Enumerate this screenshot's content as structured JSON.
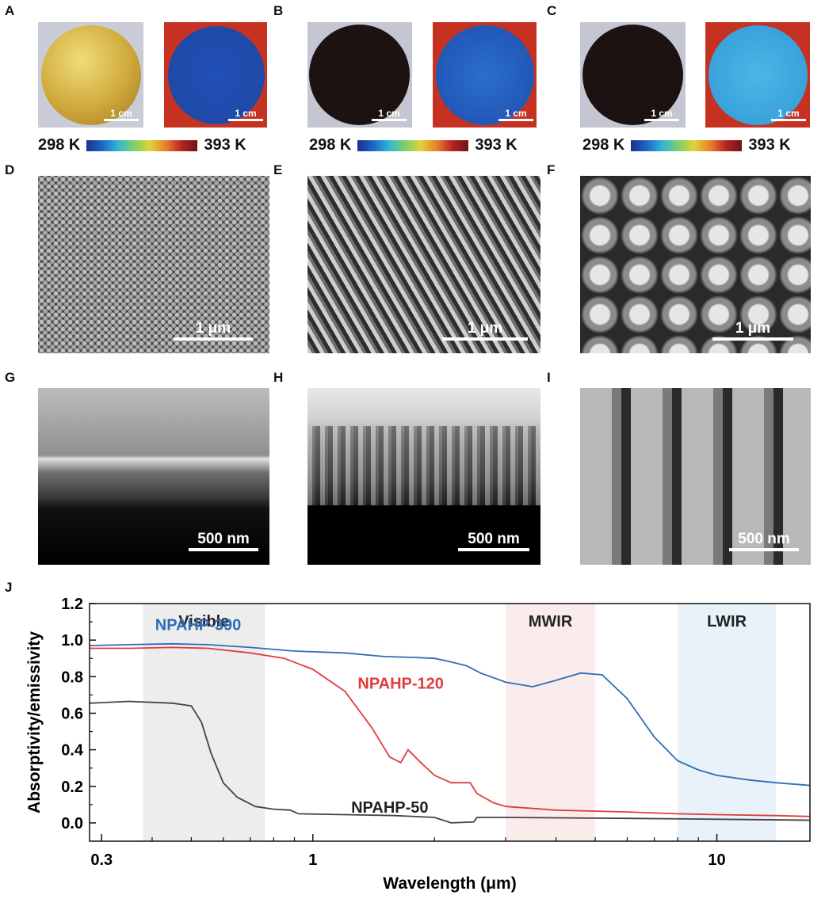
{
  "panels": {
    "A": "A",
    "B": "B",
    "C": "C",
    "D": "D",
    "E": "E",
    "F": "F",
    "G": "G",
    "H": "H",
    "I": "I",
    "J": "J"
  },
  "photos": {
    "scale_cm": "1 cm",
    "scale_um": "1 μm",
    "scale_nm": "500 nm",
    "colorbar_min": "298 K",
    "colorbar_max": "393 K"
  },
  "colors": {
    "npahp390": "#2f6db5",
    "npahp120": "#e03c3c",
    "npahp50": "#444444",
    "visible_band": "#ededed",
    "mwir_band": "#fbecec",
    "lwir_band": "#e8f2f8"
  },
  "chart_data": {
    "type": "line",
    "xlabel": "Wavelength (μm)",
    "ylabel": "Absorptivity/emissivity",
    "xscale": "log",
    "xlim": [
      0.28,
      17
    ],
    "ylim": [
      -0.1,
      1.2
    ],
    "xticks": [
      {
        "v": 0.3,
        "label": "0.3"
      },
      {
        "v": 1,
        "label": "1"
      },
      {
        "v": 10,
        "label": "10"
      }
    ],
    "yticks": [
      0.0,
      0.2,
      0.4,
      0.6,
      0.8,
      1.0,
      1.2
    ],
    "ytick_labels": [
      "0.0",
      "0.2",
      "0.4",
      "0.6",
      "0.8",
      "1.0",
      "1.2"
    ],
    "bands": [
      {
        "label": "Visible",
        "range": [
          0.38,
          0.76
        ]
      },
      {
        "label": "MWIR",
        "range": [
          3,
          5
        ]
      },
      {
        "label": "LWIR",
        "range": [
          8,
          14
        ]
      }
    ],
    "series": [
      {
        "name": "NPAHP-390",
        "points": [
          [
            0.28,
            0.97
          ],
          [
            0.35,
            0.975
          ],
          [
            0.45,
            0.98
          ],
          [
            0.55,
            0.975
          ],
          [
            0.7,
            0.96
          ],
          [
            0.9,
            0.94
          ],
          [
            1.2,
            0.93
          ],
          [
            1.5,
            0.91
          ],
          [
            1.8,
            0.905
          ],
          [
            2.0,
            0.9
          ],
          [
            2.2,
            0.88
          ],
          [
            2.4,
            0.86
          ],
          [
            2.6,
            0.82
          ],
          [
            3.0,
            0.77
          ],
          [
            3.5,
            0.745
          ],
          [
            4.0,
            0.78
          ],
          [
            4.6,
            0.82
          ],
          [
            5.2,
            0.81
          ],
          [
            6.0,
            0.68
          ],
          [
            7.0,
            0.47
          ],
          [
            8.0,
            0.34
          ],
          [
            9.0,
            0.29
          ],
          [
            10.0,
            0.26
          ],
          [
            12.0,
            0.235
          ],
          [
            14.0,
            0.22
          ],
          [
            17.0,
            0.205
          ]
        ]
      },
      {
        "name": "NPAHP-120",
        "points": [
          [
            0.28,
            0.955
          ],
          [
            0.35,
            0.955
          ],
          [
            0.45,
            0.96
          ],
          [
            0.55,
            0.955
          ],
          [
            0.7,
            0.93
          ],
          [
            0.85,
            0.9
          ],
          [
            1.0,
            0.84
          ],
          [
            1.2,
            0.72
          ],
          [
            1.4,
            0.52
          ],
          [
            1.55,
            0.36
          ],
          [
            1.65,
            0.33
          ],
          [
            1.72,
            0.4
          ],
          [
            1.85,
            0.33
          ],
          [
            2.0,
            0.26
          ],
          [
            2.2,
            0.22
          ],
          [
            2.45,
            0.22
          ],
          [
            2.55,
            0.16
          ],
          [
            2.8,
            0.11
          ],
          [
            3.0,
            0.09
          ],
          [
            4.0,
            0.07
          ],
          [
            6.0,
            0.06
          ],
          [
            8.0,
            0.05
          ],
          [
            10.0,
            0.045
          ],
          [
            14.0,
            0.04
          ],
          [
            17.0,
            0.035
          ]
        ]
      },
      {
        "name": "NPAHP-50",
        "points": [
          [
            0.28,
            0.655
          ],
          [
            0.35,
            0.665
          ],
          [
            0.45,
            0.655
          ],
          [
            0.5,
            0.64
          ],
          [
            0.53,
            0.55
          ],
          [
            0.56,
            0.38
          ],
          [
            0.6,
            0.22
          ],
          [
            0.65,
            0.14
          ],
          [
            0.72,
            0.09
          ],
          [
            0.8,
            0.075
          ],
          [
            0.88,
            0.07
          ],
          [
            0.92,
            0.05
          ],
          [
            1.2,
            0.045
          ],
          [
            1.6,
            0.04
          ],
          [
            2.0,
            0.03
          ],
          [
            2.2,
            0.0
          ],
          [
            2.5,
            0.005
          ],
          [
            2.55,
            0.03
          ],
          [
            3.0,
            0.03
          ],
          [
            6.0,
            0.025
          ],
          [
            10.0,
            0.02
          ],
          [
            17.0,
            0.015
          ]
        ]
      }
    ]
  }
}
